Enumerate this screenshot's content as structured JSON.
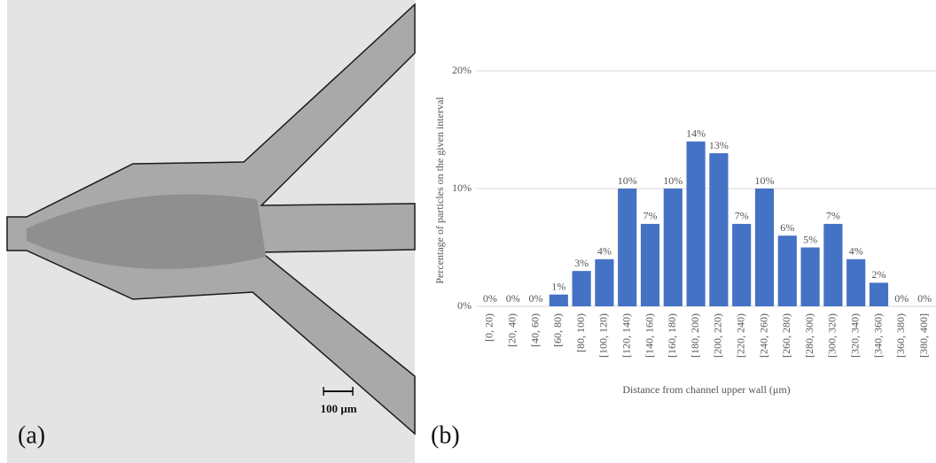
{
  "panel_a": {
    "label": "(a)",
    "scale_bar": "100 µm"
  },
  "chart_data": {
    "type": "bar",
    "panel_label": "(b)",
    "ylabel": "Percentage of particles on the given interval",
    "xlabel": "Distance from channel upper wall (μm)",
    "categories": [
      "[0, 20)",
      "[20, 40)",
      "[40, 60)",
      "[60, 80)",
      "[80, 100)",
      "[100, 120)",
      "[120, 140)",
      "[140, 160)",
      "[160, 180)",
      "[180, 200)",
      "[200, 220)",
      "[220, 240)",
      "[240, 260)",
      "[260, 280)",
      "[280, 300)",
      "[300, 320)",
      "[320, 340)",
      "[340, 360)",
      "[360, 380)",
      "[380, 400]"
    ],
    "values": [
      0,
      0,
      0,
      1,
      3,
      4,
      10,
      7,
      10,
      14,
      13,
      7,
      10,
      6,
      5,
      7,
      4,
      2,
      0,
      0
    ],
    "value_labels": [
      "0%",
      "0%",
      "0%",
      "1%",
      "3%",
      "4%",
      "10%",
      "7%",
      "10%",
      "14%",
      "13%",
      "7%",
      "10%",
      "6%",
      "5%",
      "7%",
      "4%",
      "2%",
      "0%",
      "0%"
    ],
    "color": "#4472c4",
    "ylim": [
      0,
      20
    ],
    "yticks": [
      {
        "value": 0,
        "label": "0%"
      },
      {
        "value": 10,
        "label": "10%"
      },
      {
        "value": 20,
        "label": "20%"
      }
    ],
    "grid": true
  }
}
